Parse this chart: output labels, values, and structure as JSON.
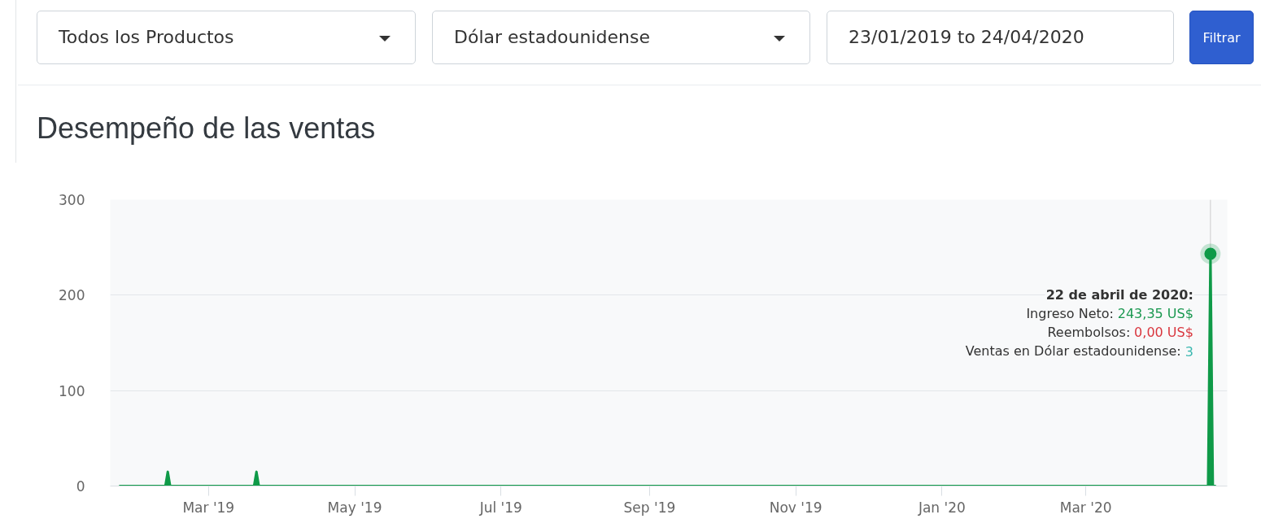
{
  "chart_data": {
    "type": "area",
    "title": "Desempeño de las ventas",
    "x": [
      "2019-01-23",
      "2019-02-11",
      "2019-02-12",
      "2019-02-13",
      "2019-03-20",
      "2019-03-21",
      "2019-03-22",
      "2020-04-21",
      "2020-04-22",
      "2020-04-23",
      "2020-04-24"
    ],
    "series": [
      {
        "color": "#0f9a48",
        "values": [
          0,
          0,
          15,
          0,
          0,
          15,
          0,
          0,
          243.35,
          0,
          0
        ]
      },
      {
        "type": "scatter",
        "x": [
          "2020-04-22"
        ],
        "values": [
          243.35
        ],
        "color": "#0f9a48",
        "marker": "circle"
      }
    ],
    "xlim": [
      "2019-01-19",
      "2020-04-29"
    ],
    "xticks": [
      {
        "value": "2019-03-01",
        "label": "Mar '19"
      },
      {
        "value": "2019-05-01",
        "label": "May '19"
      },
      {
        "value": "2019-07-01",
        "label": "Jul '19"
      },
      {
        "value": "2019-09-01",
        "label": "Sep '19"
      },
      {
        "value": "2019-11-01",
        "label": "Nov '19"
      },
      {
        "value": "2020-01-01",
        "label": "Jan '20"
      },
      {
        "value": "2020-03-01",
        "label": "Mar '20"
      }
    ],
    "ylim": [
      0,
      300
    ],
    "yticks": [
      0,
      100,
      200,
      300
    ],
    "grid": "y",
    "ref_lines": [
      {
        "axis": "x",
        "value": "2020-04-22",
        "color": "#cccccc"
      }
    ],
    "annotations": [
      "Todos los Productos",
      "Dólar estadounidense",
      "23/01/2019 to 24/04/2020",
      "Filtrar",
      {
        "text": "22 de abril de 2020:\nIngreso Neto: 243,35 US$\nReembolsos: 0,00 US$\nVentas en Dólar estadounidense: 3",
        "x": "2020-04-22",
        "y": 243.35
      }
    ]
  }
}
